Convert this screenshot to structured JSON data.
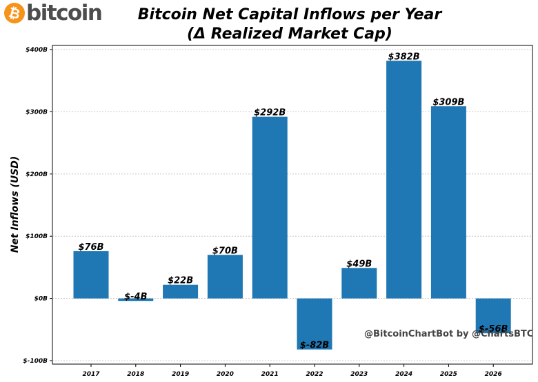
{
  "brand": {
    "coin_symbol": "₿",
    "wordmark": "bitcoin",
    "coin_color": "#f7931a",
    "text_color": "#4d4d4d"
  },
  "header": {
    "title_line1": "Bitcoin Net Capital Inflows per Year",
    "title_line2": "(Δ Realized Market Cap)"
  },
  "watermark": "@BitcoinChartBot by @ChartsBTC",
  "chart_data": {
    "type": "bar",
    "title": "Bitcoin Net Capital Inflows per Year (Δ Realized Market Cap)",
    "xlabel": "",
    "ylabel": "Net Inflows (USD)",
    "categories": [
      "2017",
      "2018",
      "2019",
      "2020",
      "2021",
      "2022",
      "2023",
      "2024",
      "2025",
      "2026"
    ],
    "values": [
      76,
      -4,
      22,
      70,
      292,
      -82,
      49,
      382,
      309,
      -56
    ],
    "value_labels": [
      "$76B",
      "$-4B",
      "$22B",
      "$70B",
      "$292B",
      "$-82B",
      "$49B",
      "$382B",
      "$309B",
      "$-56B"
    ],
    "units": "billion USD",
    "ylim": [
      -100,
      400
    ],
    "yticks": [
      -100,
      0,
      100,
      200,
      300,
      400
    ],
    "ytick_labels": [
      "$-100B",
      "$0B",
      "$100B",
      "$200B",
      "$300B",
      "$400B"
    ],
    "bar_color": "#1f77b4",
    "grid": true
  }
}
